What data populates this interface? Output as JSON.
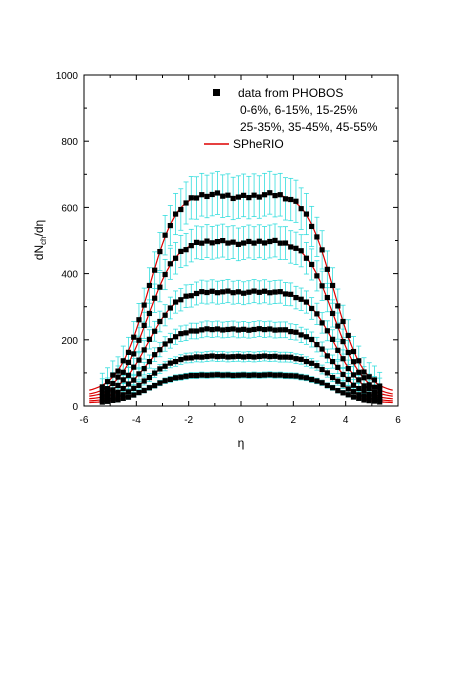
{
  "chart_data": {
    "type": "scatter",
    "xlabel": "η",
    "ylabel_main": "dN",
    "ylabel_sub": "ch",
    "ylabel_tail": "/dη",
    "xlim": [
      -6,
      6
    ],
    "ylim": [
      0,
      1000
    ],
    "x_ticks": [
      "-6",
      "-4",
      "-2",
      "0",
      "2",
      "4",
      "6"
    ],
    "y_ticks": [
      "0",
      "200",
      "400",
      "600",
      "800",
      "1000"
    ],
    "legend": {
      "data_label": "data from PHOBOS",
      "centrality_line1": "0-6%, 6-15%, 15-25%",
      "centrality_line2": "25-35%, 35-45%, 45-55%",
      "model_label": "SPheRIO"
    },
    "colors": {
      "data": "#000000",
      "error_bars": "#33dddd",
      "model": "#dd0000"
    },
    "eta": [
      -5.3,
      -5.1,
      -4.9,
      -4.7,
      -4.5,
      -4.3,
      -4.1,
      -3.9,
      -3.7,
      -3.5,
      -3.3,
      -3.1,
      -2.9,
      -2.7,
      -2.5,
      -2.3,
      -2.1,
      -1.9,
      -1.7,
      -1.5,
      -1.3,
      -1.1,
      -0.9,
      -0.7,
      -0.5,
      -0.3,
      -0.1,
      0.1,
      0.3,
      0.5,
      0.7,
      0.9,
      1.1,
      1.3,
      1.5,
      1.7,
      1.9,
      2.1,
      2.3,
      2.5,
      2.7,
      2.9,
      3.1,
      3.3,
      3.5,
      3.7,
      3.9,
      4.1,
      4.3,
      4.5,
      4.7,
      4.9,
      5.1,
      5.3
    ],
    "series": [
      {
        "plateau": 650,
        "dip": 18,
        "edge": 55,
        "error": 65
      },
      {
        "plateau": 505,
        "dip": 12,
        "edge": 40,
        "error": 50
      },
      {
        "plateau": 350,
        "dip": 6,
        "edge": 30,
        "error": 35
      },
      {
        "plateau": 235,
        "dip": 4,
        "edge": 22,
        "error": 24
      },
      {
        "plateau": 152,
        "dip": 3,
        "edge": 16,
        "error": 15
      },
      {
        "plateau": 95,
        "dip": 2,
        "edge": 11,
        "error": 9
      }
    ]
  }
}
